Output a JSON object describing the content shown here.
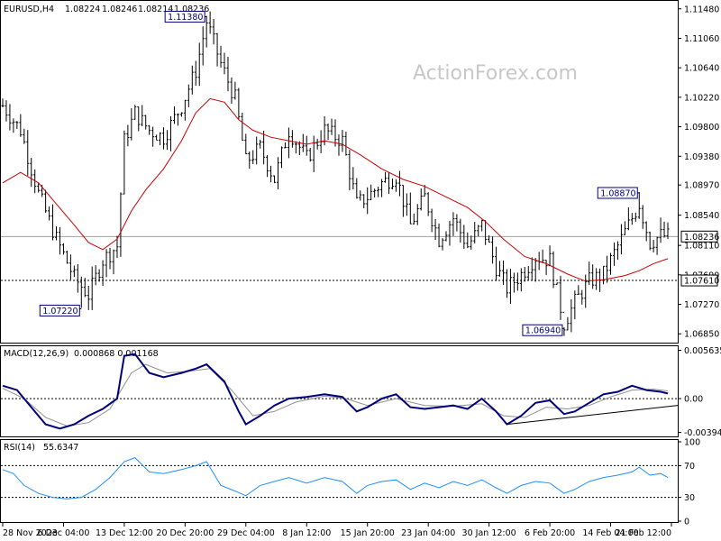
{
  "chart_data": [
    {
      "type": "ohlc",
      "header": {
        "symbol": "EURUSD,H4",
        "open": "1.08224",
        "high": "1.08246",
        "low": "1.08214",
        "close": "1.08236"
      },
      "watermark": "ActionForex.com",
      "y_ticks": [
        "1.11480",
        "1.11060",
        "1.10640",
        "1.10220",
        "1.09800",
        "1.09380",
        "1.08970",
        "1.08540",
        "1.08110",
        "1.07690",
        "1.07270",
        "1.06850"
      ],
      "ylim": [
        1.0675,
        1.1158
      ],
      "last_price": {
        "label": "1.08236",
        "value": 1.08236
      },
      "support": {
        "label": "1.07610",
        "value": 1.0761
      },
      "annotations": [
        {
          "label": "1.11380",
          "value": 1.1138,
          "index": 57
        },
        {
          "label": "1.07220",
          "value": 1.0722,
          "index": 22
        },
        {
          "label": "1.06940",
          "value": 1.0694,
          "index": 157
        },
        {
          "label": "1.08870",
          "value": 1.0887,
          "index": 178
        }
      ],
      "x_ticks": [
        "28 Nov 2023",
        "6 Dec 04:00",
        "13 Dec 12:00",
        "20 Dec 20:00",
        "29 Dec 04:00",
        "8 Jan 12:00",
        "15 Jan 20:00",
        "23 Jan 04:00",
        "30 Jan 12:00",
        "6 Feb 20:00",
        "14 Feb 04:00",
        "21 Feb 12:00"
      ],
      "close_path": [
        [
          0,
          1.101
        ],
        [
          5,
          1.0975
        ],
        [
          10,
          1.0885
        ],
        [
          15,
          1.082
        ],
        [
          20,
          1.0765
        ],
        [
          24,
          1.074
        ],
        [
          28,
          1.079
        ],
        [
          32,
          1.081
        ],
        [
          34,
          1.096
        ],
        [
          37,
          1.1
        ],
        [
          41,
          1.0975
        ],
        [
          45,
          1.0965
        ],
        [
          50,
          1.101
        ],
        [
          54,
          1.106
        ],
        [
          57,
          1.113
        ],
        [
          61,
          1.107
        ],
        [
          65,
          1.102
        ],
        [
          68,
          1.093
        ],
        [
          72,
          1.095
        ],
        [
          76,
          1.0905
        ],
        [
          80,
          1.0975
        ],
        [
          85,
          1.0935
        ],
        [
          90,
          1.0975
        ],
        [
          95,
          1.096
        ],
        [
          99,
          1.087
        ],
        [
          102,
          1.088
        ],
        [
          106,
          1.09
        ],
        [
          110,
          1.091
        ],
        [
          114,
          1.084
        ],
        [
          118,
          1.088
        ],
        [
          122,
          1.082
        ],
        [
          126,
          1.085
        ],
        [
          130,
          1.081
        ],
        [
          134,
          1.084
        ],
        [
          138,
          1.078
        ],
        [
          141,
          1.075
        ],
        [
          145,
          1.077
        ],
        [
          149,
          1.0795
        ],
        [
          153,
          1.079
        ],
        [
          157,
          1.07
        ],
        [
          160,
          1.073
        ],
        [
          164,
          1.076
        ],
        [
          168,
          1.077
        ],
        [
          171,
          1.08
        ],
        [
          174,
          1.083
        ],
        [
          178,
          1.087
        ],
        [
          181,
          1.0815
        ],
        [
          184,
          1.0825
        ],
        [
          186,
          1.0824
        ]
      ],
      "ma_path": [
        [
          0,
          1.09
        ],
        [
          5,
          1.0915
        ],
        [
          10,
          1.09
        ],
        [
          15,
          1.087
        ],
        [
          20,
          1.084
        ],
        [
          24,
          1.0815
        ],
        [
          28,
          1.0805
        ],
        [
          32,
          1.082
        ],
        [
          36,
          1.086
        ],
        [
          40,
          1.089
        ],
        [
          45,
          1.092
        ],
        [
          50,
          1.096
        ],
        [
          54,
          1.1
        ],
        [
          58,
          1.102
        ],
        [
          62,
          1.1015
        ],
        [
          66,
          1.099
        ],
        [
          70,
          1.0975
        ],
        [
          75,
          1.0965
        ],
        [
          80,
          1.096
        ],
        [
          85,
          1.0955
        ],
        [
          90,
          1.096
        ],
        [
          95,
          1.0955
        ],
        [
          100,
          1.094
        ],
        [
          106,
          1.092
        ],
        [
          112,
          1.0905
        ],
        [
          118,
          1.0895
        ],
        [
          124,
          1.088
        ],
        [
          130,
          1.0865
        ],
        [
          135,
          1.0845
        ],
        [
          140,
          1.082
        ],
        [
          146,
          1.0795
        ],
        [
          152,
          1.0785
        ],
        [
          158,
          1.077
        ],
        [
          163,
          1.076
        ],
        [
          168,
          1.0762
        ],
        [
          174,
          1.0768
        ],
        [
          178,
          1.0775
        ],
        [
          182,
          1.0785
        ],
        [
          186,
          1.0792
        ]
      ],
      "bars": 187
    },
    {
      "type": "line",
      "header": {
        "label": "MACD(12,26,9)",
        "values": "0.000868 0.001168"
      },
      "y_ticks": [
        "0.005635",
        "0.00",
        "-0.003949"
      ],
      "ylim": [
        -0.0042,
        0.0059
      ],
      "macd_path": [
        [
          0,
          0.0015
        ],
        [
          4,
          0.001
        ],
        [
          8,
          -0.001
        ],
        [
          12,
          -0.003
        ],
        [
          16,
          -0.0035
        ],
        [
          20,
          -0.003
        ],
        [
          24,
          -0.002
        ],
        [
          28,
          -0.0012
        ],
        [
          32,
          0.0
        ],
        [
          34,
          0.005
        ],
        [
          37,
          0.0052
        ],
        [
          41,
          0.003
        ],
        [
          45,
          0.0025
        ],
        [
          50,
          0.003
        ],
        [
          54,
          0.0035
        ],
        [
          57,
          0.004
        ],
        [
          62,
          0.002
        ],
        [
          66,
          -0.0015
        ],
        [
          68,
          -0.003
        ],
        [
          72,
          -0.002
        ],
        [
          76,
          -0.0008
        ],
        [
          80,
          0.0
        ],
        [
          85,
          0.0002
        ],
        [
          90,
          0.0005
        ],
        [
          95,
          0.0002
        ],
        [
          99,
          -0.0015
        ],
        [
          102,
          -0.001
        ],
        [
          106,
          0.0
        ],
        [
          110,
          0.0005
        ],
        [
          114,
          -0.001
        ],
        [
          118,
          -0.0012
        ],
        [
          122,
          -0.001
        ],
        [
          126,
          -0.0008
        ],
        [
          130,
          -0.0012
        ],
        [
          134,
          0.0
        ],
        [
          138,
          -0.0015
        ],
        [
          141,
          -0.003
        ],
        [
          145,
          -0.002
        ],
        [
          149,
          -0.0005
        ],
        [
          153,
          -0.0002
        ],
        [
          157,
          -0.0018
        ],
        [
          160,
          -0.0015
        ],
        [
          164,
          -0.0005
        ],
        [
          168,
          0.0005
        ],
        [
          172,
          0.0008
        ],
        [
          176,
          0.0015
        ],
        [
          180,
          0.001
        ],
        [
          184,
          0.0008
        ],
        [
          186,
          0.0006
        ]
      ],
      "signal_path": [
        [
          0,
          0.0012
        ],
        [
          6,
          0.0
        ],
        [
          12,
          -0.0022
        ],
        [
          18,
          -0.0032
        ],
        [
          24,
          -0.0028
        ],
        [
          30,
          -0.0012
        ],
        [
          36,
          0.003
        ],
        [
          40,
          0.004
        ],
        [
          46,
          0.003
        ],
        [
          52,
          0.0032
        ],
        [
          58,
          0.0035
        ],
        [
          64,
          0.001
        ],
        [
          70,
          -0.002
        ],
        [
          76,
          -0.0015
        ],
        [
          82,
          -0.0004
        ],
        [
          90,
          0.0003
        ],
        [
          96,
          0.0
        ],
        [
          102,
          -0.0008
        ],
        [
          110,
          0.0
        ],
        [
          118,
          -0.0008
        ],
        [
          126,
          -0.0009
        ],
        [
          134,
          -0.0006
        ],
        [
          140,
          -0.002
        ],
        [
          146,
          -0.0022
        ],
        [
          152,
          -0.001
        ],
        [
          158,
          -0.0012
        ],
        [
          164,
          -0.0008
        ],
        [
          170,
          0.0002
        ],
        [
          176,
          0.001
        ],
        [
          182,
          0.0011
        ],
        [
          186,
          0.0009
        ]
      ],
      "trendline": [
        [
          141,
          -0.003
        ],
        [
          186,
          -0.0008
        ]
      ]
    },
    {
      "type": "line",
      "header": {
        "label": "RSI(14)",
        "values": "55.6347"
      },
      "y_ticks": [
        "100",
        "70",
        "30",
        "0"
      ],
      "ylim": [
        0,
        100
      ],
      "rsi_path": [
        [
          0,
          65
        ],
        [
          3,
          60
        ],
        [
          6,
          45
        ],
        [
          10,
          35
        ],
        [
          14,
          30
        ],
        [
          18,
          28
        ],
        [
          22,
          30
        ],
        [
          26,
          40
        ],
        [
          30,
          55
        ],
        [
          34,
          75
        ],
        [
          37,
          80
        ],
        [
          41,
          62
        ],
        [
          45,
          60
        ],
        [
          50,
          65
        ],
        [
          54,
          70
        ],
        [
          57,
          75
        ],
        [
          61,
          45
        ],
        [
          65,
          38
        ],
        [
          68,
          32
        ],
        [
          72,
          45
        ],
        [
          76,
          50
        ],
        [
          80,
          55
        ],
        [
          85,
          48
        ],
        [
          90,
          55
        ],
        [
          95,
          50
        ],
        [
          99,
          35
        ],
        [
          102,
          45
        ],
        [
          106,
          50
        ],
        [
          110,
          52
        ],
        [
          114,
          40
        ],
        [
          118,
          48
        ],
        [
          122,
          42
        ],
        [
          126,
          50
        ],
        [
          130,
          45
        ],
        [
          134,
          52
        ],
        [
          138,
          42
        ],
        [
          141,
          35
        ],
        [
          145,
          45
        ],
        [
          149,
          50
        ],
        [
          153,
          48
        ],
        [
          157,
          35
        ],
        [
          160,
          40
        ],
        [
          164,
          50
        ],
        [
          168,
          55
        ],
        [
          172,
          58
        ],
        [
          176,
          62
        ],
        [
          178,
          68
        ],
        [
          181,
          58
        ],
        [
          184,
          60
        ],
        [
          186,
          55
        ]
      ]
    }
  ]
}
